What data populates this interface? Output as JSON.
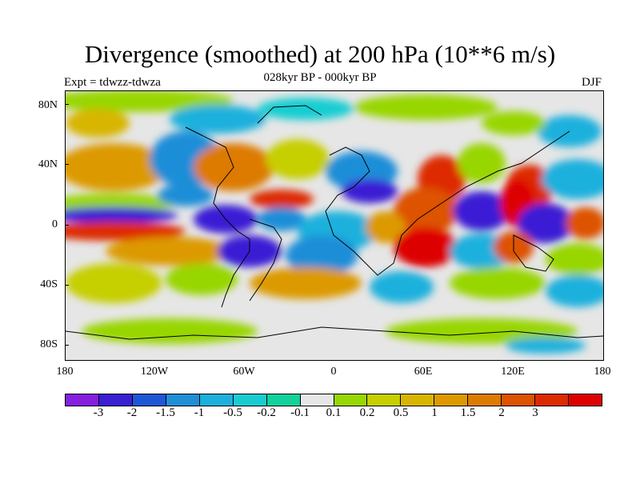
{
  "title": "Divergence (smoothed) at 200 hPa (10**6 m/s)",
  "subtitle": "028kyr BP - 000kyr BP",
  "left_label": "Expt = tdwzz-tdwza",
  "right_label": "DJF",
  "lat_labels": [
    "80N",
    "40N",
    "0",
    "40S",
    "80S"
  ],
  "lon_labels": [
    "180",
    "120W",
    "60W",
    "0",
    "60E",
    "120E",
    "180"
  ],
  "colorbar": {
    "colors": [
      "#8420e0",
      "#3a1fd4",
      "#1f57d6",
      "#1f8ed8",
      "#1cb0dd",
      "#18cdd2",
      "#10d29a",
      "#e6e6e6",
      "#98d604",
      "#c6cf00",
      "#d8b500",
      "#dc9a00",
      "#dd7a00",
      "#dc5300",
      "#dd2a00",
      "#dd0000"
    ],
    "labels": [
      "-3",
      "-2",
      "-1.5",
      "-1",
      "-0.5",
      "-0.2",
      "-0.1",
      "0.1",
      "0.2",
      "0.5",
      "1",
      "1.5",
      "2",
      "3"
    ]
  }
}
